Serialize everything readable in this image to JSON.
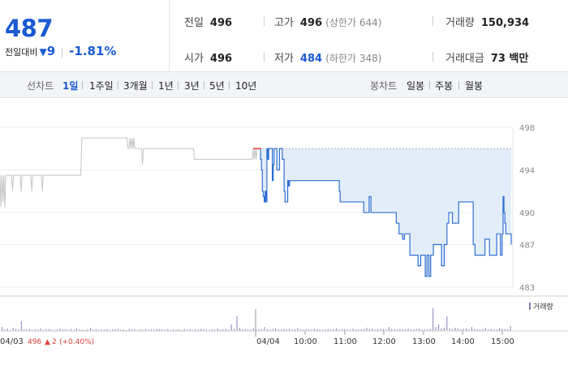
{
  "quote": {
    "price": "487",
    "change_label": "전일대비",
    "change_direction": "down",
    "change_value": "9",
    "change_pct": "-1.81%"
  },
  "stats": {
    "prev_close_label": "전일",
    "prev_close": "496",
    "high_label": "고가",
    "high": "496",
    "upper_limit": "(상한가 644)",
    "volume_label": "거래량",
    "volume": "150,934",
    "open_label": "시가",
    "open": "496",
    "low_label": "저가",
    "low": "484",
    "lower_limit": "(하한가 348)",
    "value_label": "거래대금",
    "value": "73 백만"
  },
  "tabs": {
    "line_label": "선차트",
    "line_items": [
      "1일",
      "1주일",
      "3개월",
      "1년",
      "3년",
      "5년",
      "10년"
    ],
    "line_active": "1일",
    "candle_label": "봉차트",
    "candle_items": [
      "일봉",
      "주봉",
      "월봉"
    ]
  },
  "colors": {
    "accent_blue": "#1a5ad3",
    "prev_day_line": "#c4c4c4",
    "today_line": "#2f6fd1",
    "today_fill": "#e3edf9",
    "prev_close_line": "#e0403a",
    "volume_bar": "#8a7bb5"
  },
  "chart_data": {
    "type": "line",
    "ylim": [
      483,
      498
    ],
    "y_ticks": [
      "498",
      "494",
      "490",
      "487",
      "483"
    ],
    "x_labels": [
      "04/03",
      "04/04",
      "10:00",
      "11:00",
      "12:00",
      "13:00",
      "14:00",
      "15:00"
    ],
    "prev_day_label": "04/03",
    "prev_day_close": "496",
    "prev_day_change_arrow": "▲",
    "prev_day_change": "2",
    "prev_day_change_pct": "(+0.40%)",
    "volume_legend": "거래량",
    "series": [
      {
        "x_end": "04/03 close",
        "values": [
          493.5,
          490.5,
          493.5,
          491,
          493.5,
          490.5,
          493.5,
          493.5,
          493.5,
          493.5,
          493.5,
          493.5,
          493.5,
          492,
          493.5,
          493.5,
          493.5,
          493.5,
          493.5,
          493.5,
          493.5,
          493.5,
          492,
          493.5,
          493.5,
          493.5,
          493.5,
          493.5,
          493.5,
          493.5,
          493.5,
          493.5,
          493.5,
          492,
          493.5,
          493.5,
          493.5,
          493.5,
          493.5,
          493.5,
          493.5,
          493.5,
          493.5,
          493.5,
          492,
          493.5,
          493.5,
          493.5,
          493.5,
          493.5,
          493.5,
          493.5,
          493.5,
          493.5,
          493.5,
          493.5,
          493.5,
          493.5,
          493.5,
          493.5,
          493.5,
          493.5,
          493.5,
          493.5,
          493.5,
          493.5,
          493.5,
          493.5,
          493.5,
          493.5,
          493.5,
          493.5,
          493.5,
          493.5,
          493.5,
          493.5,
          493.5,
          493.5,
          493.5,
          493.5,
          493.5,
          493.5,
          493.5,
          493.5,
          493.5,
          497,
          497,
          497,
          497,
          497,
          497,
          497,
          497,
          497,
          497,
          497,
          497,
          497,
          497,
          497,
          497,
          497,
          497,
          497,
          497,
          497,
          497,
          497,
          497,
          497,
          497,
          497,
          497,
          497,
          497,
          497,
          497,
          497,
          497,
          497,
          497,
          497,
          497,
          497,
          497,
          497,
          497,
          497,
          497,
          497,
          497,
          497,
          497,
          496,
          496,
          497,
          496,
          497,
          496,
          497,
          496,
          496,
          496,
          496,
          496,
          496,
          496,
          496,
          494.5,
          496,
          496,
          496,
          496,
          496,
          496,
          496,
          496,
          496,
          496,
          496,
          496,
          496,
          496,
          496,
          496,
          496,
          496,
          496,
          496,
          496,
          496,
          496,
          496,
          496,
          496,
          496,
          496,
          496,
          496,
          496,
          496,
          496,
          496,
          496,
          496,
          496,
          496,
          496,
          496,
          496,
          496,
          496,
          496,
          496,
          496,
          496,
          496,
          496,
          496,
          496,
          496,
          496,
          495,
          495,
          495,
          495,
          495,
          495,
          495,
          495,
          495,
          495,
          495,
          495,
          495,
          495,
          495,
          495,
          495,
          495,
          495,
          495,
          495,
          495,
          495,
          495,
          495,
          495,
          495,
          495,
          495,
          495,
          495,
          495,
          495,
          495,
          495,
          495,
          495,
          495,
          495,
          495,
          495,
          495,
          495,
          495,
          495,
          495,
          495,
          495,
          495,
          495,
          495,
          495,
          495,
          495,
          495,
          495,
          495,
          495,
          495,
          495,
          495,
          496,
          495,
          496,
          495,
          496,
          496
        ]
      },
      {
        "x_start": "04/04 09:00",
        "x_end": "04/04 15:30",
        "values": [
          496,
          495,
          494,
          492,
          491.5,
          491,
          492,
          491,
          496,
          495,
          496,
          496,
          496,
          496,
          493,
          494.5,
          496,
          496,
          496,
          494,
          494,
          494,
          496,
          496,
          496,
          495,
          495,
          492,
          491,
          491,
          491,
          493,
          492.5,
          493,
          493,
          493,
          493,
          493,
          493,
          493,
          493,
          493,
          493,
          493,
          493,
          493,
          493,
          493,
          493,
          493,
          493,
          493,
          493,
          493,
          493,
          493,
          493,
          493,
          493,
          493,
          493,
          493,
          493,
          493,
          493,
          493,
          493,
          493,
          493,
          493,
          493,
          493,
          493,
          493,
          493,
          493,
          493,
          493,
          493,
          493,
          493,
          493,
          493,
          493,
          493,
          493,
          493,
          493,
          492,
          491,
          491,
          491,
          491,
          491,
          491,
          491,
          491,
          491,
          491,
          491,
          491,
          491,
          491,
          491,
          491,
          491,
          491,
          491,
          491,
          491,
          491,
          491,
          491,
          491,
          491,
          490,
          490,
          490,
          490,
          490,
          490,
          491.5,
          491.5,
          490,
          490,
          490,
          490,
          490,
          490,
          490,
          490,
          490,
          490,
          490,
          490,
          490,
          490,
          490,
          490,
          490,
          490,
          490,
          490,
          490,
          490,
          490,
          490,
          490,
          490,
          490,
          490,
          489,
          489,
          489,
          488,
          488,
          488,
          488,
          487.5,
          487.5,
          488,
          488,
          488,
          488,
          488,
          488,
          486,
          486,
          486,
          486,
          486,
          486,
          486,
          486,
          486,
          485,
          485,
          485,
          486,
          486,
          486,
          486,
          486,
          484,
          484,
          486,
          486,
          484,
          484,
          486,
          486,
          486,
          487,
          487,
          487,
          487,
          487,
          487,
          487,
          487,
          487,
          485,
          485,
          485,
          487,
          487,
          487,
          489,
          489,
          490,
          490,
          490,
          490,
          489,
          489,
          489,
          489,
          489,
          489,
          489,
          491,
          491,
          491,
          491,
          491,
          491,
          491,
          491,
          491,
          491,
          491,
          491,
          491,
          491,
          491,
          491,
          487,
          487,
          486,
          486,
          486,
          486,
          486,
          486,
          486,
          486,
          486,
          486,
          486,
          487.5,
          487.5,
          487.5,
          487.5,
          487.5,
          486,
          486,
          486,
          486,
          486,
          486,
          486,
          486,
          488,
          488,
          488,
          488,
          486,
          486,
          488,
          491.5,
          490,
          489,
          488,
          488,
          488,
          488,
          488,
          488,
          487
        ]
      }
    ],
    "prev_close": 496,
    "volume": [
      0.12,
      0.05,
      0.08,
      0.03,
      0.1,
      0.06,
      0.04,
      0.3,
      0.05,
      0.04,
      0.06,
      0.03,
      0.05,
      0.04,
      0.08,
      0.03,
      0.05,
      0.06,
      0.04,
      0.03,
      0.05,
      0.07,
      0.04,
      0.05,
      0.03,
      0.06,
      0.04,
      0.08,
      0.05,
      0.04,
      0.03,
      0.05,
      0.1,
      0.04,
      0.06,
      0.03,
      0.05,
      0.04,
      0.06,
      0.03,
      0.05,
      0.06,
      0.07,
      0.04,
      0.05,
      0.03,
      0.06,
      0.04,
      0.05,
      0.03,
      0.05,
      0.04,
      0.06,
      0.03,
      0.05,
      0.04,
      0.06,
      0.05,
      0.05,
      0.04,
      0.06,
      0.03,
      0.05,
      0.04,
      0.05,
      0.03,
      0.06,
      0.04,
      0.05,
      0.03,
      0.05,
      0.04,
      0.06,
      0.05,
      0.04,
      0.03,
      0.05,
      0.04,
      0.07,
      0.03,
      0.05,
      0.06,
      0.04,
      0.2,
      0.07,
      0.45,
      0.1,
      0.05,
      0.06,
      0.04,
      0.05,
      0.08,
      0.04,
      0.05,
      0.06,
      0.12,
      0.05,
      0.04,
      0.06,
      0.08,
      0.05,
      0.04,
      0.06,
      0.05,
      0.07,
      0.04,
      0.05,
      0.09,
      0.05,
      0.04,
      0.06,
      0.05,
      0.04,
      0.07,
      0.05,
      0.04,
      0.03,
      0.05,
      0.06,
      0.04,
      0.05,
      0.08,
      0.04,
      0.05,
      0.06,
      0.05,
      0.04,
      0.07,
      0.05,
      0.04,
      0.05,
      0.06,
      0.1,
      0.05,
      0.07,
      0.04,
      0.05,
      0.06,
      0.05,
      0.04,
      0.12,
      0.06,
      0.05,
      0.04,
      0.06,
      0.05,
      0.05,
      0.07,
      0.04,
      0.05,
      0.06,
      0.08,
      0.05,
      0.04,
      0.05,
      0.06,
      0.7,
      0.12,
      0.2,
      0.08,
      0.1,
      0.45,
      0.08,
      0.06,
      0.1,
      0.07,
      0.05,
      0.06,
      0.08,
      0.05,
      0.12,
      0.06,
      0.05,
      0.04,
      0.06,
      0.1,
      0.05,
      0.06,
      0.04,
      0.05,
      0.08,
      0.07,
      0.06,
      0.05,
      0.15
    ]
  }
}
